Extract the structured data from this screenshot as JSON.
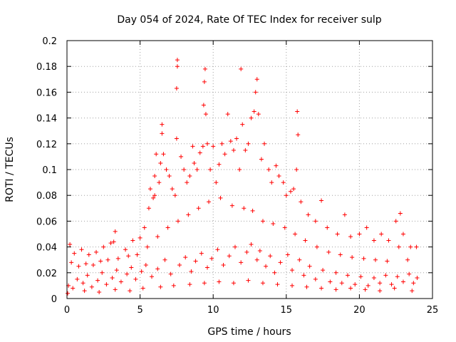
{
  "chart_data": {
    "type": "scatter",
    "title": "Day 054 of 2024, Rate Of TEC Index for receiver sulp",
    "xlabel": "GPS time / hours",
    "ylabel": "ROTI / TECUs",
    "xlim": [
      0,
      25
    ],
    "ylim": [
      0,
      0.2
    ],
    "x_ticks": [
      0,
      5,
      10,
      15,
      20,
      25
    ],
    "y_ticks": [
      0,
      0.02,
      0.04,
      0.06,
      0.08,
      0.1,
      0.12,
      0.14,
      0.16,
      0.18,
      0.2
    ],
    "x_tick_labels": [
      "0",
      "5",
      "10",
      "15",
      "20",
      "25"
    ],
    "y_tick_labels": [
      "0",
      "0.02",
      "0.04",
      "0.06",
      "0.08",
      "0.1",
      "0.12",
      "0.14",
      "0.16",
      "0.18",
      "0.2"
    ],
    "grid": true,
    "marker": "+",
    "color": "#ff0000",
    "series": [
      {
        "name": "ROTI",
        "points": [
          [
            0.2,
            0.042
          ],
          [
            0.5,
            0.035
          ],
          [
            1.0,
            0.038
          ],
          [
            1.5,
            0.034
          ],
          [
            2.0,
            0.036
          ],
          [
            2.5,
            0.04
          ],
          [
            3.0,
            0.043
          ],
          [
            3.2,
            0.044
          ],
          [
            3.3,
            0.052
          ],
          [
            4.0,
            0.038
          ],
          [
            4.5,
            0.045
          ],
          [
            5.0,
            0.047
          ],
          [
            5.3,
            0.055
          ],
          [
            5.6,
            0.07
          ],
          [
            5.7,
            0.085
          ],
          [
            5.9,
            0.078
          ],
          [
            6.0,
            0.08
          ],
          [
            6.0,
            0.095
          ],
          [
            6.1,
            0.112
          ],
          [
            6.3,
            0.09
          ],
          [
            6.4,
            0.105
          ],
          [
            6.5,
            0.135
          ],
          [
            6.5,
            0.128
          ],
          [
            6.6,
            0.112
          ],
          [
            6.8,
            0.1
          ],
          [
            7.0,
            0.095
          ],
          [
            7.2,
            0.085
          ],
          [
            7.4,
            0.08
          ],
          [
            7.5,
            0.163
          ],
          [
            7.5,
            0.124
          ],
          [
            7.55,
            0.185
          ],
          [
            7.55,
            0.18
          ],
          [
            7.8,
            0.11
          ],
          [
            8.0,
            0.1
          ],
          [
            8.2,
            0.09
          ],
          [
            8.4,
            0.095
          ],
          [
            8.6,
            0.118
          ],
          [
            8.7,
            0.105
          ],
          [
            8.9,
            0.1
          ],
          [
            9.1,
            0.113
          ],
          [
            9.3,
            0.118
          ],
          [
            9.35,
            0.15
          ],
          [
            9.4,
            0.168
          ],
          [
            9.45,
            0.178
          ],
          [
            9.5,
            0.143
          ],
          [
            9.6,
            0.12
          ],
          [
            9.8,
            0.1
          ],
          [
            10.0,
            0.118
          ],
          [
            10.2,
            0.09
          ],
          [
            10.4,
            0.104
          ],
          [
            10.6,
            0.12
          ],
          [
            10.8,
            0.112
          ],
          [
            11.0,
            0.143
          ],
          [
            11.2,
            0.122
          ],
          [
            11.4,
            0.115
          ],
          [
            11.6,
            0.124
          ],
          [
            11.8,
            0.1
          ],
          [
            11.9,
            0.178
          ],
          [
            12.0,
            0.135
          ],
          [
            12.2,
            0.115
          ],
          [
            12.4,
            0.12
          ],
          [
            12.6,
            0.14
          ],
          [
            12.8,
            0.145
          ],
          [
            12.9,
            0.16
          ],
          [
            13.0,
            0.17
          ],
          [
            13.1,
            0.143
          ],
          [
            13.3,
            0.108
          ],
          [
            13.5,
            0.12
          ],
          [
            13.8,
            0.1
          ],
          [
            14.0,
            0.09
          ],
          [
            14.3,
            0.103
          ],
          [
            14.5,
            0.095
          ],
          [
            14.8,
            0.09
          ],
          [
            15.0,
            0.08
          ],
          [
            15.3,
            0.083
          ],
          [
            15.5,
            0.085
          ],
          [
            15.7,
            0.1
          ],
          [
            15.75,
            0.145
          ],
          [
            15.8,
            0.127
          ],
          [
            16.0,
            0.075
          ],
          [
            16.5,
            0.065
          ],
          [
            17.0,
            0.06
          ],
          [
            17.4,
            0.076
          ],
          [
            17.8,
            0.055
          ],
          [
            18.5,
            0.05
          ],
          [
            19.0,
            0.065
          ],
          [
            19.4,
            0.048
          ],
          [
            20.0,
            0.05
          ],
          [
            20.5,
            0.055
          ],
          [
            21.0,
            0.045
          ],
          [
            21.5,
            0.05
          ],
          [
            22.0,
            0.045
          ],
          [
            22.5,
            0.06
          ],
          [
            22.8,
            0.066
          ],
          [
            23.0,
            0.05
          ],
          [
            23.5,
            0.04
          ],
          [
            23.9,
            0.04
          ],
          [
            0.3,
            0.028
          ],
          [
            0.8,
            0.025
          ],
          [
            1.3,
            0.027
          ],
          [
            1.8,
            0.026
          ],
          [
            2.3,
            0.029
          ],
          [
            2.8,
            0.03
          ],
          [
            3.5,
            0.031
          ],
          [
            4.2,
            0.033
          ],
          [
            4.8,
            0.034
          ],
          [
            5.5,
            0.04
          ],
          [
            6.2,
            0.048
          ],
          [
            6.9,
            0.055
          ],
          [
            7.6,
            0.06
          ],
          [
            8.3,
            0.065
          ],
          [
            9.0,
            0.07
          ],
          [
            9.7,
            0.075
          ],
          [
            10.5,
            0.078
          ],
          [
            11.3,
            0.072
          ],
          [
            12.1,
            0.07
          ],
          [
            12.7,
            0.068
          ],
          [
            13.4,
            0.06
          ],
          [
            14.1,
            0.058
          ],
          [
            14.9,
            0.055
          ],
          [
            15.6,
            0.05
          ],
          [
            16.3,
            0.045
          ],
          [
            17.1,
            0.04
          ],
          [
            17.9,
            0.036
          ],
          [
            18.7,
            0.034
          ],
          [
            19.5,
            0.032
          ],
          [
            20.3,
            0.031
          ],
          [
            21.1,
            0.03
          ],
          [
            21.9,
            0.029
          ],
          [
            22.7,
            0.04
          ],
          [
            23.3,
            0.03
          ],
          [
            0.1,
            0.01
          ],
          [
            0.4,
            0.008
          ],
          [
            0.7,
            0.015
          ],
          [
            1.1,
            0.012
          ],
          [
            1.4,
            0.018
          ],
          [
            1.7,
            0.009
          ],
          [
            2.1,
            0.014
          ],
          [
            2.4,
            0.02
          ],
          [
            2.7,
            0.011
          ],
          [
            3.1,
            0.016
          ],
          [
            3.4,
            0.022
          ],
          [
            3.7,
            0.013
          ],
          [
            4.1,
            0.019
          ],
          [
            4.4,
            0.024
          ],
          [
            4.7,
            0.015
          ],
          [
            5.1,
            0.021
          ],
          [
            5.4,
            0.026
          ],
          [
            5.8,
            0.017
          ],
          [
            6.2,
            0.023
          ],
          [
            6.7,
            0.03
          ],
          [
            7.1,
            0.019
          ],
          [
            7.7,
            0.026
          ],
          [
            8.1,
            0.032
          ],
          [
            8.5,
            0.021
          ],
          [
            8.8,
            0.029
          ],
          [
            9.2,
            0.035
          ],
          [
            9.6,
            0.024
          ],
          [
            9.9,
            0.031
          ],
          [
            10.3,
            0.038
          ],
          [
            10.7,
            0.026
          ],
          [
            11.1,
            0.033
          ],
          [
            11.5,
            0.04
          ],
          [
            11.9,
            0.028
          ],
          [
            12.3,
            0.036
          ],
          [
            12.6,
            0.042
          ],
          [
            13.0,
            0.03
          ],
          [
            13.2,
            0.037
          ],
          [
            13.6,
            0.025
          ],
          [
            13.9,
            0.033
          ],
          [
            14.2,
            0.02
          ],
          [
            14.6,
            0.028
          ],
          [
            15.1,
            0.034
          ],
          [
            15.4,
            0.022
          ],
          [
            15.9,
            0.03
          ],
          [
            16.2,
            0.018
          ],
          [
            16.6,
            0.025
          ],
          [
            17.0,
            0.015
          ],
          [
            17.5,
            0.022
          ],
          [
            18.0,
            0.013
          ],
          [
            18.4,
            0.02
          ],
          [
            18.8,
            0.012
          ],
          [
            19.2,
            0.018
          ],
          [
            19.7,
            0.011
          ],
          [
            20.1,
            0.017
          ],
          [
            20.6,
            0.01
          ],
          [
            21.0,
            0.016
          ],
          [
            21.4,
            0.012
          ],
          [
            21.8,
            0.018
          ],
          [
            22.2,
            0.011
          ],
          [
            22.6,
            0.017
          ],
          [
            23.0,
            0.013
          ],
          [
            23.4,
            0.019
          ],
          [
            23.7,
            0.012
          ],
          [
            23.95,
            0.016
          ],
          [
            0.05,
            0.004
          ],
          [
            1.2,
            0.006
          ],
          [
            2.2,
            0.005
          ],
          [
            3.3,
            0.007
          ],
          [
            4.3,
            0.006
          ],
          [
            5.2,
            0.008
          ],
          [
            6.4,
            0.009
          ],
          [
            7.3,
            0.01
          ],
          [
            8.4,
            0.011
          ],
          [
            9.4,
            0.012
          ],
          [
            10.4,
            0.013
          ],
          [
            11.4,
            0.012
          ],
          [
            12.4,
            0.014
          ],
          [
            13.4,
            0.012
          ],
          [
            14.4,
            0.011
          ],
          [
            15.4,
            0.01
          ],
          [
            16.4,
            0.009
          ],
          [
            17.4,
            0.008
          ],
          [
            18.4,
            0.007
          ],
          [
            19.4,
            0.008
          ],
          [
            20.4,
            0.007
          ],
          [
            21.4,
            0.006
          ],
          [
            22.4,
            0.008
          ],
          [
            23.6,
            0.006
          ]
        ]
      }
    ]
  }
}
